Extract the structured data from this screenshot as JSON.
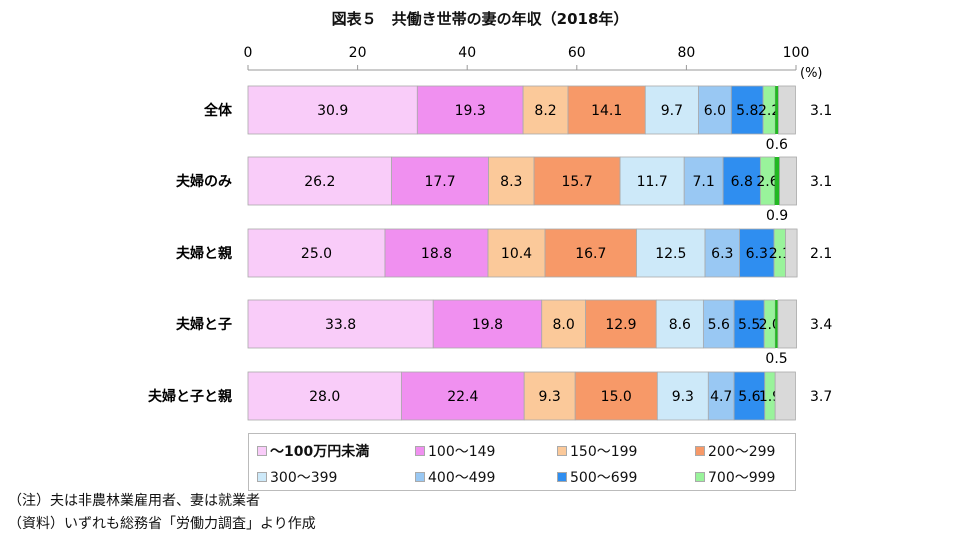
{
  "chart_data": {
    "type": "bar",
    "orientation": "horizontal-stacked-100",
    "title": "図表５　共働き世帯の妻の年収（2018年）",
    "unit_label": "(%)",
    "xlim": [
      0,
      100
    ],
    "xticks": [
      0,
      20,
      40,
      60,
      80,
      100
    ],
    "categories": [
      "全体",
      "夫婦のみ",
      "夫婦と親",
      "夫婦と子",
      "夫婦と子と親"
    ],
    "series": [
      {
        "name": "～100万円未満",
        "color": "#f9ccf9",
        "values": [
          30.9,
          26.2,
          25.0,
          33.8,
          28.0
        ]
      },
      {
        "name": "100～149",
        "color": "#f090f0",
        "values": [
          19.3,
          17.7,
          18.8,
          19.8,
          22.4
        ]
      },
      {
        "name": "150～199",
        "color": "#fbc99a",
        "values": [
          8.2,
          8.3,
          10.4,
          8.0,
          9.3
        ]
      },
      {
        "name": "200～299",
        "color": "#f79968",
        "values": [
          14.1,
          15.7,
          16.7,
          12.9,
          15.0
        ]
      },
      {
        "name": "300～399",
        "color": "#cde9f9",
        "values": [
          9.7,
          11.7,
          12.5,
          8.6,
          9.3
        ]
      },
      {
        "name": "400～499",
        "color": "#99c8f3",
        "values": [
          6.0,
          7.1,
          6.3,
          5.6,
          4.7
        ]
      },
      {
        "name": "500～699",
        "color": "#2f8ef0",
        "values": [
          5.8,
          6.8,
          6.3,
          5.5,
          5.6
        ]
      },
      {
        "name": "700～999",
        "color": "#99f39b",
        "values": [
          2.2,
          2.6,
          2.1,
          2.0,
          1.9
        ]
      },
      {
        "color": "#22b822",
        "values": [
          0.6,
          0.9,
          null,
          0.5,
          null
        ]
      },
      {
        "color": "#d9d9d9",
        "values": [
          3.1,
          3.1,
          2.1,
          3.4,
          3.7
        ]
      }
    ],
    "grid": false,
    "legend": "bottom"
  },
  "notes": [
    "（注）夫は非農林業雇用者、妻は就業者",
    "（資料）いずれも総務省「労働力調査」より作成"
  ]
}
